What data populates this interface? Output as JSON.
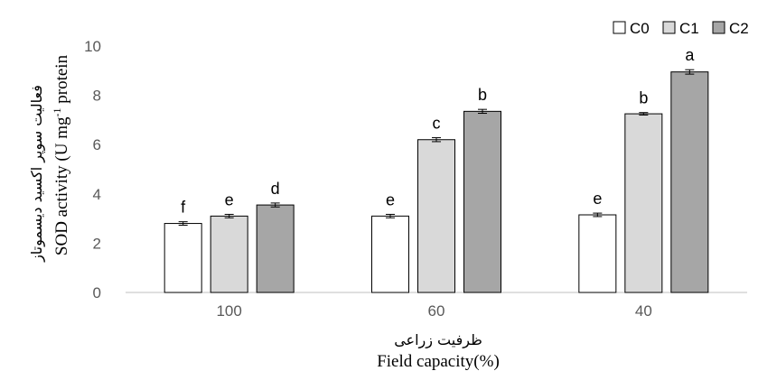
{
  "chart_data": {
    "type": "bar",
    "categories": [
      "100",
      "60",
      "40"
    ],
    "series": [
      {
        "name": "C0",
        "values": [
          2.8,
          3.1,
          3.15
        ],
        "errors": [
          0.07,
          0.07,
          0.07
        ],
        "letters": [
          "f",
          "e",
          "e"
        ],
        "color": "#ffffff"
      },
      {
        "name": "C1",
        "values": [
          3.1,
          6.2,
          7.25
        ],
        "errors": [
          0.07,
          0.08,
          0.05
        ],
        "letters": [
          "e",
          "c",
          "b"
        ],
        "color": "#d9d9d9"
      },
      {
        "name": "C2",
        "values": [
          3.55,
          7.35,
          8.95
        ],
        "errors": [
          0.08,
          0.08,
          0.09
        ],
        "letters": [
          "d",
          "b",
          "a"
        ],
        "color": "#a6a6a6"
      }
    ],
    "ylim": [
      0,
      10
    ],
    "yticks": [
      0,
      2,
      4,
      6,
      8,
      10
    ],
    "xlabel_fa": "ظرفیت زراعی",
    "xlabel_en": "Field capacity(%)",
    "ylabel_fa": "فعالیت سوپر اکسید دیسموتاز",
    "ylabel_en_main": "SOD activity (U mg",
    "ylabel_en_sup": "-1",
    "ylabel_en_tail": " protein",
    "legend_position": "top-right",
    "grid": false
  }
}
